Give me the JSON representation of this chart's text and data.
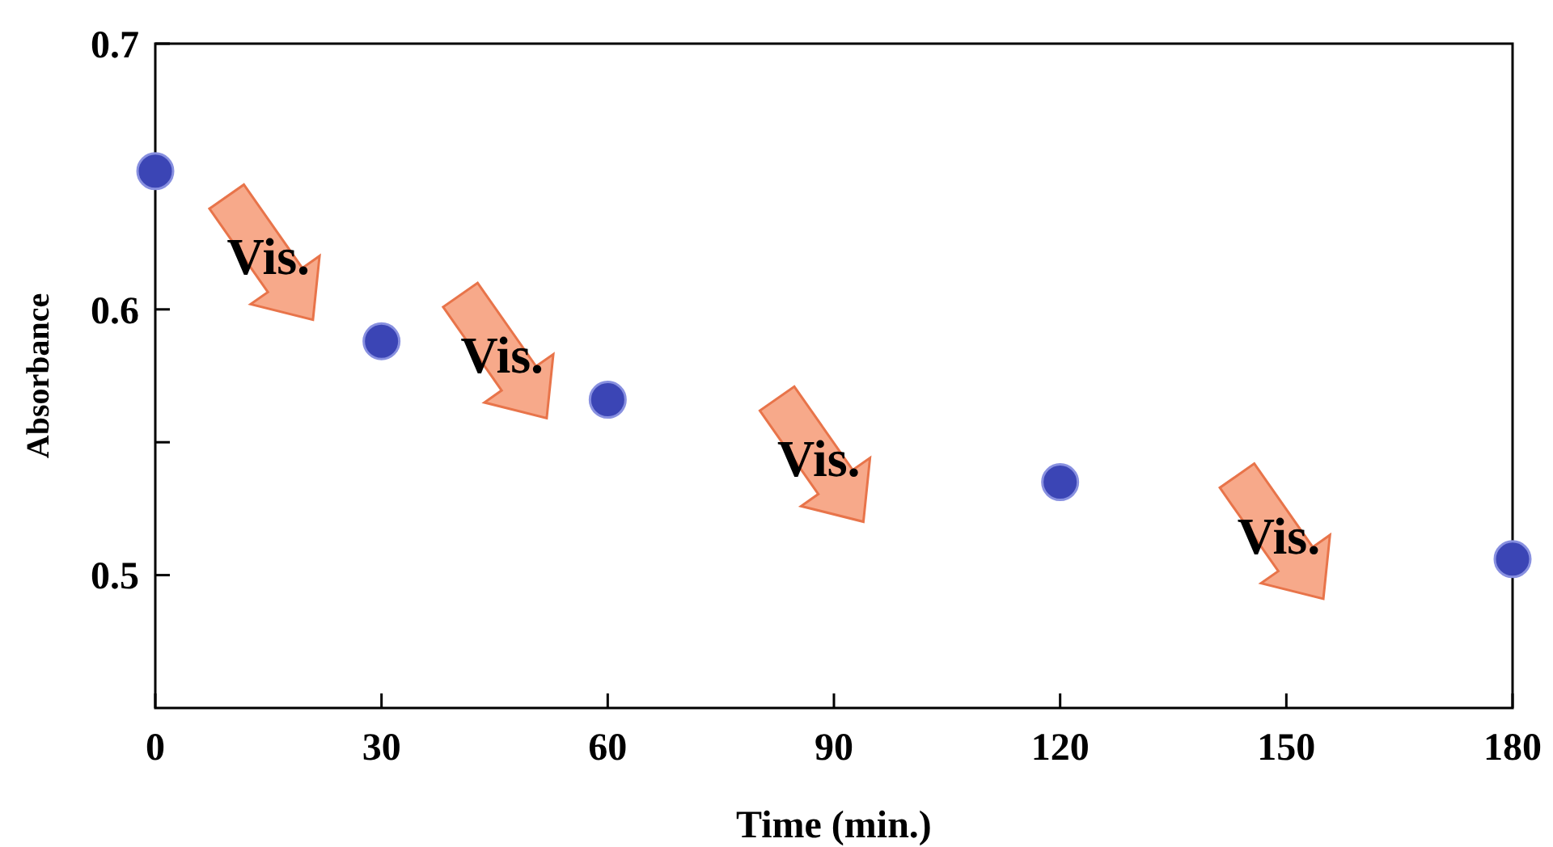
{
  "chart_data": {
    "type": "scatter",
    "xlabel": "Time (min.)",
    "ylabel": "Absorbance",
    "x": [
      0,
      30,
      60,
      120,
      180
    ],
    "values": [
      0.652,
      0.588,
      0.566,
      0.535,
      0.506
    ],
    "color": "#3b45b5",
    "marker": "circle",
    "xlim": [
      0,
      180
    ],
    "xticks": [
      0,
      30,
      60,
      90,
      120,
      150,
      180
    ],
    "ylim": [
      0.45,
      0.7
    ],
    "yticks": [
      {
        "value": 0.5,
        "label": "0.5"
      },
      {
        "value": 0.55,
        "label": null
      },
      {
        "value": 0.6,
        "label": "0.6"
      },
      {
        "value": 0.65,
        "label": null
      },
      {
        "value": 0.7,
        "label": "0.7"
      }
    ],
    "annotations": [
      "Vis.",
      "Vis.",
      "Vis.",
      "Vis."
    ],
    "grid": false
  }
}
